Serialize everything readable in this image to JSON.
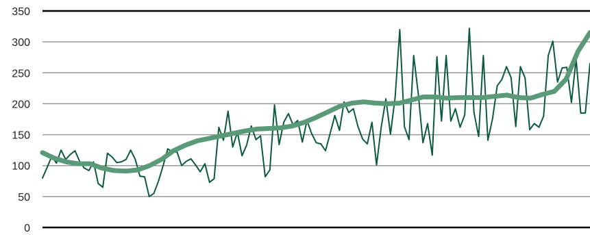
{
  "chart_data": {
    "type": "line",
    "title": "",
    "xlabel": "",
    "ylabel": "",
    "ylim": [
      0,
      350
    ],
    "y_ticks": [
      "0",
      "50",
      "100",
      "150",
      "200",
      "250",
      "300",
      "350"
    ],
    "grid": "horizontal",
    "legend": "none",
    "colors": {
      "raw": "#0b5a3a",
      "trend": "#5a9a78",
      "grid": "#9a9a9a",
      "axis": "#000000"
    },
    "series": [
      {
        "style": "thin",
        "values": [
          80,
          97,
          115,
          104,
          125,
          110,
          118,
          124,
          107,
          96,
          92,
          106,
          71,
          65,
          120,
          114,
          105,
          106,
          110,
          125,
          110,
          83,
          82,
          50,
          55,
          75,
          100,
          127,
          122,
          122,
          100,
          107,
          111,
          101,
          90,
          103,
          73,
          79,
          162,
          141,
          188,
          130,
          154,
          116,
          133,
          164,
          142,
          148,
          82,
          93,
          198,
          134,
          170,
          184,
          166,
          173,
          138,
          173,
          152,
          137,
          135,
          124,
          152,
          181,
          157,
          203,
          186,
          192,
          163,
          143,
          135,
          170,
          101,
          162,
          208,
          151,
          210,
          320,
          163,
          142,
          278,
          215,
          137,
          168,
          117,
          276,
          172,
          278,
          172,
          192,
          162,
          182,
          322,
          186,
          147,
          278,
          141,
          176,
          229,
          239,
          260,
          242,
          163,
          260,
          242,
          158,
          168,
          162,
          180,
          278,
          301,
          235,
          258,
          259,
          202,
          272,
          185,
          185,
          265
        ]
      },
      {
        "style": "thick",
        "values": [
          121,
          112,
          106,
          103,
          103,
          96,
          92,
          91,
          93,
          100,
          110,
          124,
          133,
          140,
          144,
          148,
          152,
          156,
          159,
          160,
          161,
          164,
          170,
          178,
          187,
          196,
          201,
          203,
          201,
          200,
          201,
          206,
          211,
          211,
          209,
          210,
          210,
          210,
          212,
          214,
          210,
          209,
          215,
          220,
          240,
          285,
          315
        ]
      }
    ]
  }
}
